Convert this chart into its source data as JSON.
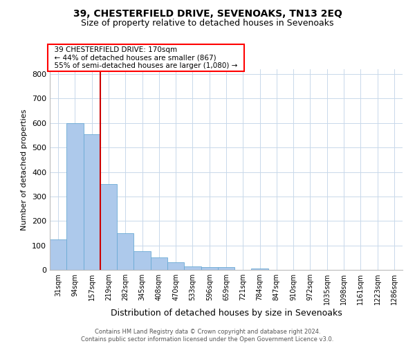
{
  "title": "39, CHESTERFIELD DRIVE, SEVENOAKS, TN13 2EQ",
  "subtitle": "Size of property relative to detached houses in Sevenoaks",
  "xlabel": "Distribution of detached houses by size in Sevenoaks",
  "ylabel": "Number of detached properties",
  "footnote1": "Contains HM Land Registry data © Crown copyright and database right 2024.",
  "footnote2": "Contains public sector information licensed under the Open Government Licence v3.0.",
  "annotation_line1": "  39 CHESTERFIELD DRIVE: 170sqm  ",
  "annotation_line2": "  ← 44% of detached houses are smaller (867)  ",
  "annotation_line3": "  55% of semi-detached houses are larger (1,080) →  ",
  "bar_color": "#adc9eb",
  "bar_edge_color": "#6aaad4",
  "vline_color": "#cc0000",
  "vline_x_index": 2,
  "categories": [
    "31sqm",
    "94sqm",
    "157sqm",
    "219sqm",
    "282sqm",
    "345sqm",
    "408sqm",
    "470sqm",
    "533sqm",
    "596sqm",
    "659sqm",
    "721sqm",
    "784sqm",
    "847sqm",
    "910sqm",
    "972sqm",
    "1035sqm",
    "1098sqm",
    "1161sqm",
    "1223sqm",
    "1286sqm"
  ],
  "values": [
    125,
    600,
    555,
    350,
    150,
    75,
    52,
    32,
    14,
    12,
    10,
    0,
    7,
    0,
    0,
    0,
    0,
    0,
    0,
    0,
    0
  ],
  "ylim": [
    0,
    820
  ],
  "yticks": [
    0,
    100,
    200,
    300,
    400,
    500,
    600,
    700,
    800
  ],
  "background_color": "#ffffff",
  "grid_color": "#c8d8ea",
  "title_fontsize": 10,
  "subtitle_fontsize": 9,
  "ylabel_fontsize": 8,
  "xlabel_fontsize": 9,
  "tick_fontsize": 7,
  "footnote_fontsize": 6,
  "annot_fontsize": 7.5
}
